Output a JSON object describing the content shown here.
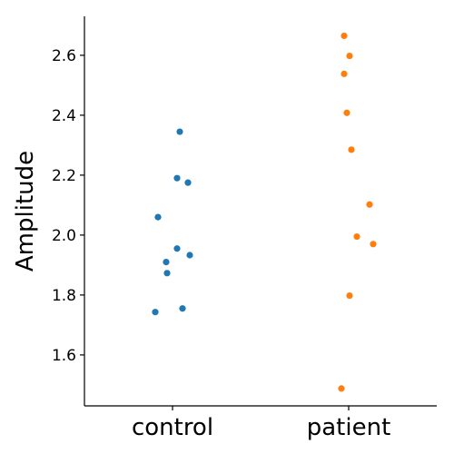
{
  "chart_data": {
    "type": "scatter",
    "title": "",
    "xlabel": "",
    "ylabel": "Amplitude",
    "categories": [
      "control",
      "patient"
    ],
    "ylim": [
      1.43,
      2.73
    ],
    "yticks": [
      1.6,
      1.8,
      2.0,
      2.2,
      2.4,
      2.6
    ],
    "ytick_labels": [
      "1.6",
      "1.8",
      "2.0",
      "2.2",
      "2.4",
      "2.6"
    ],
    "grid": false,
    "legend": "none",
    "series": [
      {
        "category": "control",
        "color": "#1f77b4",
        "values": [
          2.345,
          2.19,
          2.175,
          2.06,
          1.955,
          1.933,
          1.91,
          1.873,
          1.755,
          1.743
        ]
      },
      {
        "category": "patient",
        "color": "#ff7f0e",
        "values": [
          2.665,
          2.598,
          2.538,
          2.408,
          2.285,
          2.102,
          1.995,
          1.97,
          1.798,
          1.488
        ]
      }
    ]
  }
}
